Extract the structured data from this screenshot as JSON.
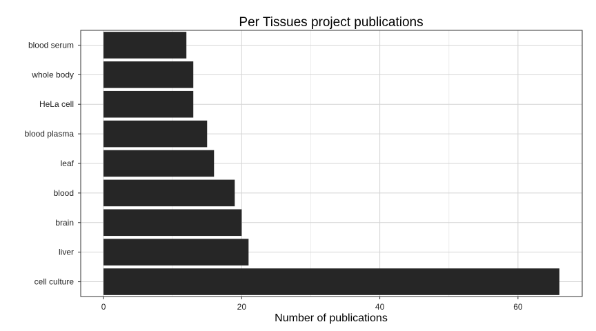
{
  "chart_data": {
    "type": "bar",
    "orientation": "horizontal",
    "title": "Per Tissues project publications",
    "xlabel": "Number of publications",
    "ylabel": "",
    "categories": [
      "blood serum",
      "whole body",
      "HeLa cell",
      "blood plasma",
      "leaf",
      "blood",
      "brain",
      "liver",
      "cell culture"
    ],
    "values": [
      12,
      13,
      13,
      15,
      16,
      19,
      20,
      21,
      66
    ],
    "xlim": [
      -3.3,
      69.3
    ],
    "xticks": [
      0,
      20,
      40,
      60
    ],
    "grid": true,
    "bar_color": "#262626",
    "legend": "none"
  }
}
